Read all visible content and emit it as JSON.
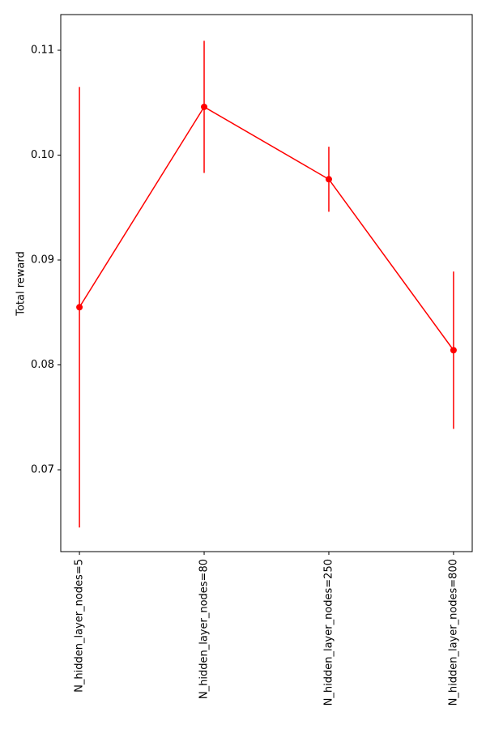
{
  "chart_data": {
    "type": "errorbar-line",
    "y_label": "Total reward",
    "categories": [
      "N_hidden_layer_nodes=5",
      "N_hidden_layer_nodes=80",
      "N_hidden_layer_nodes=250",
      "N_hidden_layer_nodes=800"
    ],
    "series": [
      {
        "color": "#ff0000",
        "values": [
          0.0855,
          0.1046,
          0.0977,
          0.0814
        ],
        "errors": [
          0.021,
          0.0063,
          0.0031,
          0.0075
        ]
      }
    ],
    "ylim": [
      0.0622,
      0.1134
    ],
    "yticks": [
      0.07,
      0.08,
      0.09,
      {
        "value": 0.1,
        "label": "0.10"
      },
      0.11
    ]
  }
}
